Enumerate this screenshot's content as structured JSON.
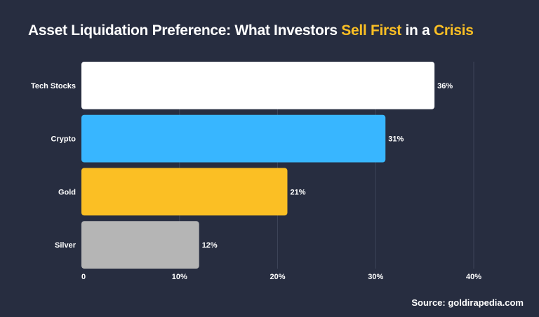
{
  "title": {
    "part1": "Asset Liquidation Preference: What Investors ",
    "highlight1": "Sell First",
    "part2": " in a ",
    "highlight2": "Crisis"
  },
  "source": "Source: goldirapedia.com",
  "chart_data": {
    "type": "bar",
    "orientation": "horizontal",
    "categories": [
      "Tech Stocks",
      "Crypto",
      "Gold",
      "Silver"
    ],
    "values": [
      36,
      31,
      21,
      12
    ],
    "data_labels": [
      "36%",
      "31%",
      "21%",
      "12%"
    ],
    "colors": [
      "#ffffff",
      "#38b6ff",
      "#fbbf24",
      "#b5b5b5"
    ],
    "xlim": [
      0,
      40
    ],
    "xticks": [
      0,
      10,
      20,
      30,
      40
    ],
    "xtick_labels": [
      "0",
      "10%",
      "20%",
      "30%",
      "40%"
    ],
    "grid": "vertical",
    "background": "#272d40",
    "accent": "#fbbf24"
  }
}
